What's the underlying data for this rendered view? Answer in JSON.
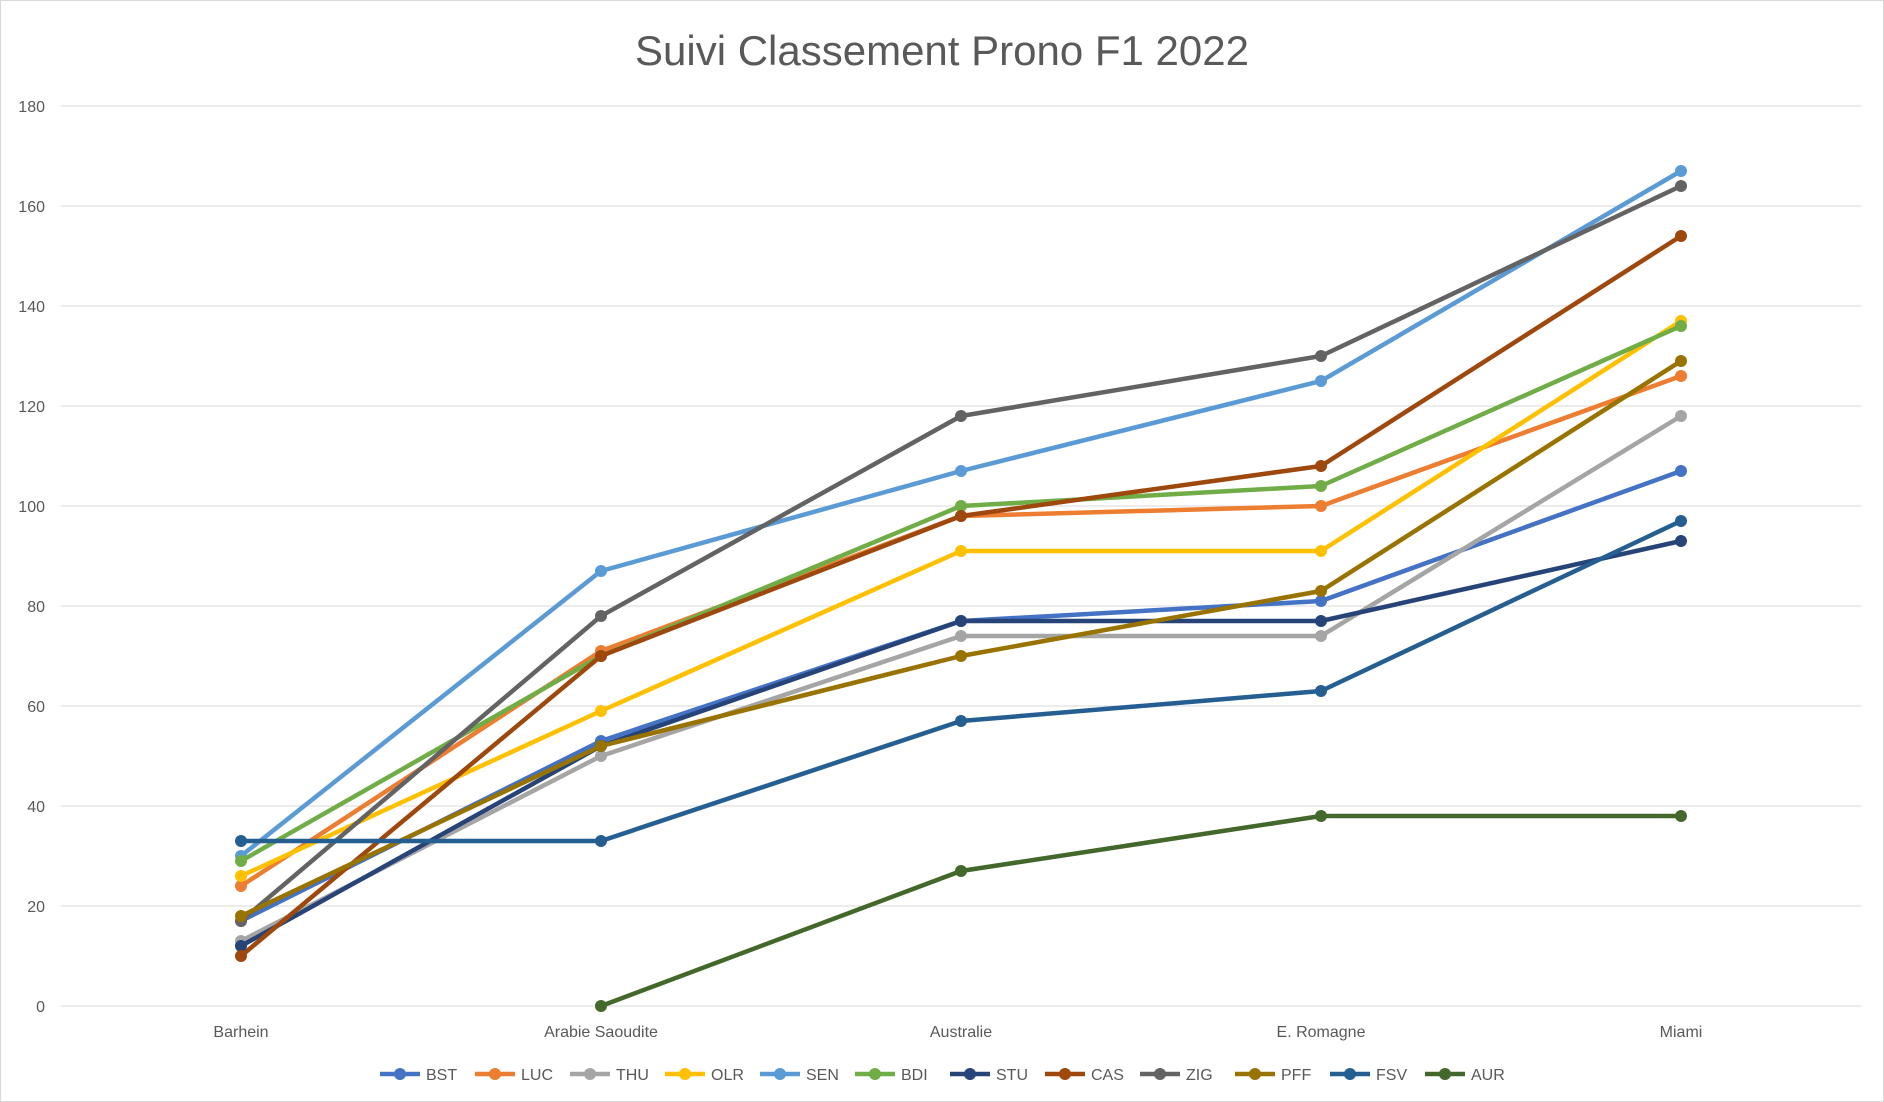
{
  "chart_data": {
    "type": "line",
    "title": "Suivi Classement Prono F1 2022",
    "xlabel": "",
    "ylabel": "",
    "categories": [
      "Barhein",
      "Arabie Saoudite",
      "Australie",
      "E. Romagne",
      "Miami"
    ],
    "ylim": [
      0,
      180
    ],
    "yticks": [
      0,
      20,
      40,
      60,
      80,
      100,
      120,
      140,
      160,
      180
    ],
    "grid": "horizontal",
    "legend_position": "bottom",
    "series": [
      {
        "name": "BST",
        "color": "#4472C4",
        "values": [
          17,
          53,
          77,
          81,
          107
        ]
      },
      {
        "name": "LUC",
        "color": "#ED7D31",
        "values": [
          24,
          71,
          98,
          100,
          126
        ]
      },
      {
        "name": "THU",
        "color": "#A5A5A5",
        "values": [
          13,
          50,
          74,
          74,
          118
        ]
      },
      {
        "name": "OLR",
        "color": "#FFC000",
        "values": [
          26,
          59,
          91,
          91,
          137
        ]
      },
      {
        "name": "SEN",
        "color": "#5B9BD5",
        "values": [
          30,
          87,
          107,
          125,
          167
        ]
      },
      {
        "name": "BDI",
        "color": "#70AD47",
        "values": [
          29,
          70,
          100,
          104,
          136
        ]
      },
      {
        "name": "STU",
        "color": "#264478",
        "values": [
          12,
          52,
          77,
          77,
          93
        ]
      },
      {
        "name": "CAS",
        "color": "#9E480E",
        "values": [
          10,
          70,
          98,
          108,
          154
        ]
      },
      {
        "name": "ZIG",
        "color": "#636363",
        "values": [
          17,
          78,
          118,
          130,
          164
        ]
      },
      {
        "name": "PFF",
        "color": "#997300",
        "values": [
          18,
          52,
          70,
          83,
          129
        ]
      },
      {
        "name": "FSV",
        "color": "#255E91",
        "values": [
          33,
          33,
          57,
          63,
          97
        ]
      },
      {
        "name": "AUR",
        "color": "#43682B",
        "values": [
          null,
          0,
          27,
          38,
          38
        ]
      }
    ]
  }
}
